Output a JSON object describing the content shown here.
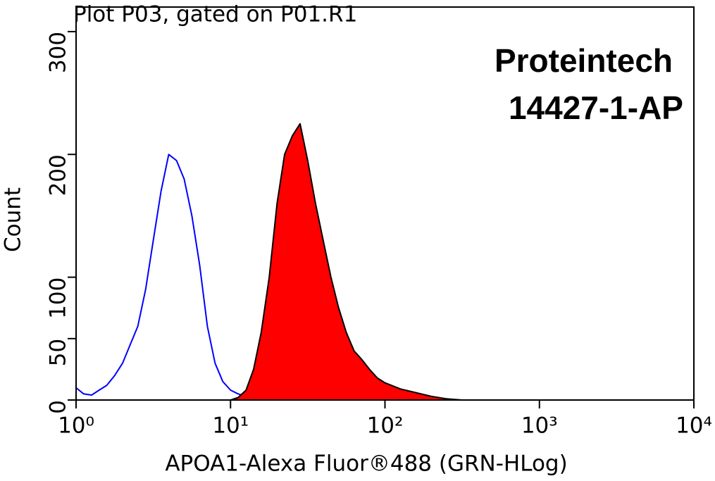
{
  "chart_data": {
    "type": "histogram-overlay",
    "title": "Plot P03, gated on P01.R1",
    "x_label": "APOA1-Alexa Fluor®488 (GRN-HLog)",
    "y_label": "Count",
    "annotations": [
      "Proteintech",
      "14427-1-AP"
    ],
    "xscale": "log",
    "xlim": [
      1,
      10000
    ],
    "xticks": [
      {
        "value": 1,
        "label": "10⁰"
      },
      {
        "value": 10,
        "label": "10¹"
      },
      {
        "value": 100,
        "label": "10²"
      },
      {
        "value": 1000,
        "label": "10³"
      },
      {
        "value": 10000,
        "label": "10⁴"
      }
    ],
    "ylim": [
      0,
      320
    ],
    "yticks": [
      0,
      50,
      100,
      200,
      300
    ],
    "x": [
      1,
      1.12,
      1.26,
      1.41,
      1.58,
      1.78,
      2,
      2.24,
      2.51,
      2.82,
      3.16,
      3.55,
      3.98,
      4.47,
      5.01,
      5.62,
      6.31,
      7.08,
      7.94,
      8.91,
      10,
      11.2,
      12.6,
      14.1,
      15.8,
      17.8,
      20,
      22.4,
      25.1,
      28.2,
      31.6,
      35.5,
      39.8,
      44.7,
      50.1,
      56.2,
      63.1,
      70.8,
      79.4,
      89.1,
      100,
      126,
      158,
      200,
      251,
      316,
      501,
      1000,
      3162,
      10000
    ],
    "series": [
      {
        "style": "line",
        "color": "#0000ff",
        "values": [
          10,
          5,
          4,
          8,
          12,
          20,
          30,
          45,
          60,
          90,
          130,
          170,
          200,
          195,
          180,
          150,
          110,
          60,
          30,
          15,
          8,
          5,
          3,
          2,
          1,
          1,
          0,
          0,
          0,
          0,
          0,
          0,
          0,
          0,
          0,
          0,
          0,
          0,
          0,
          0,
          0,
          0,
          0,
          0,
          0,
          0,
          0,
          0,
          0,
          0
        ]
      },
      {
        "style": "area",
        "color": "#ff0000",
        "values": [
          0,
          0,
          0,
          0,
          0,
          0,
          0,
          0,
          0,
          0,
          0,
          0,
          0,
          0,
          0,
          0,
          0,
          0,
          0,
          0,
          0,
          2,
          8,
          25,
          55,
          100,
          160,
          200,
          215,
          225,
          195,
          160,
          130,
          100,
          75,
          55,
          40,
          33,
          25,
          18,
          14,
          9,
          6,
          3,
          1,
          0,
          0,
          0,
          0,
          0
        ]
      }
    ]
  }
}
